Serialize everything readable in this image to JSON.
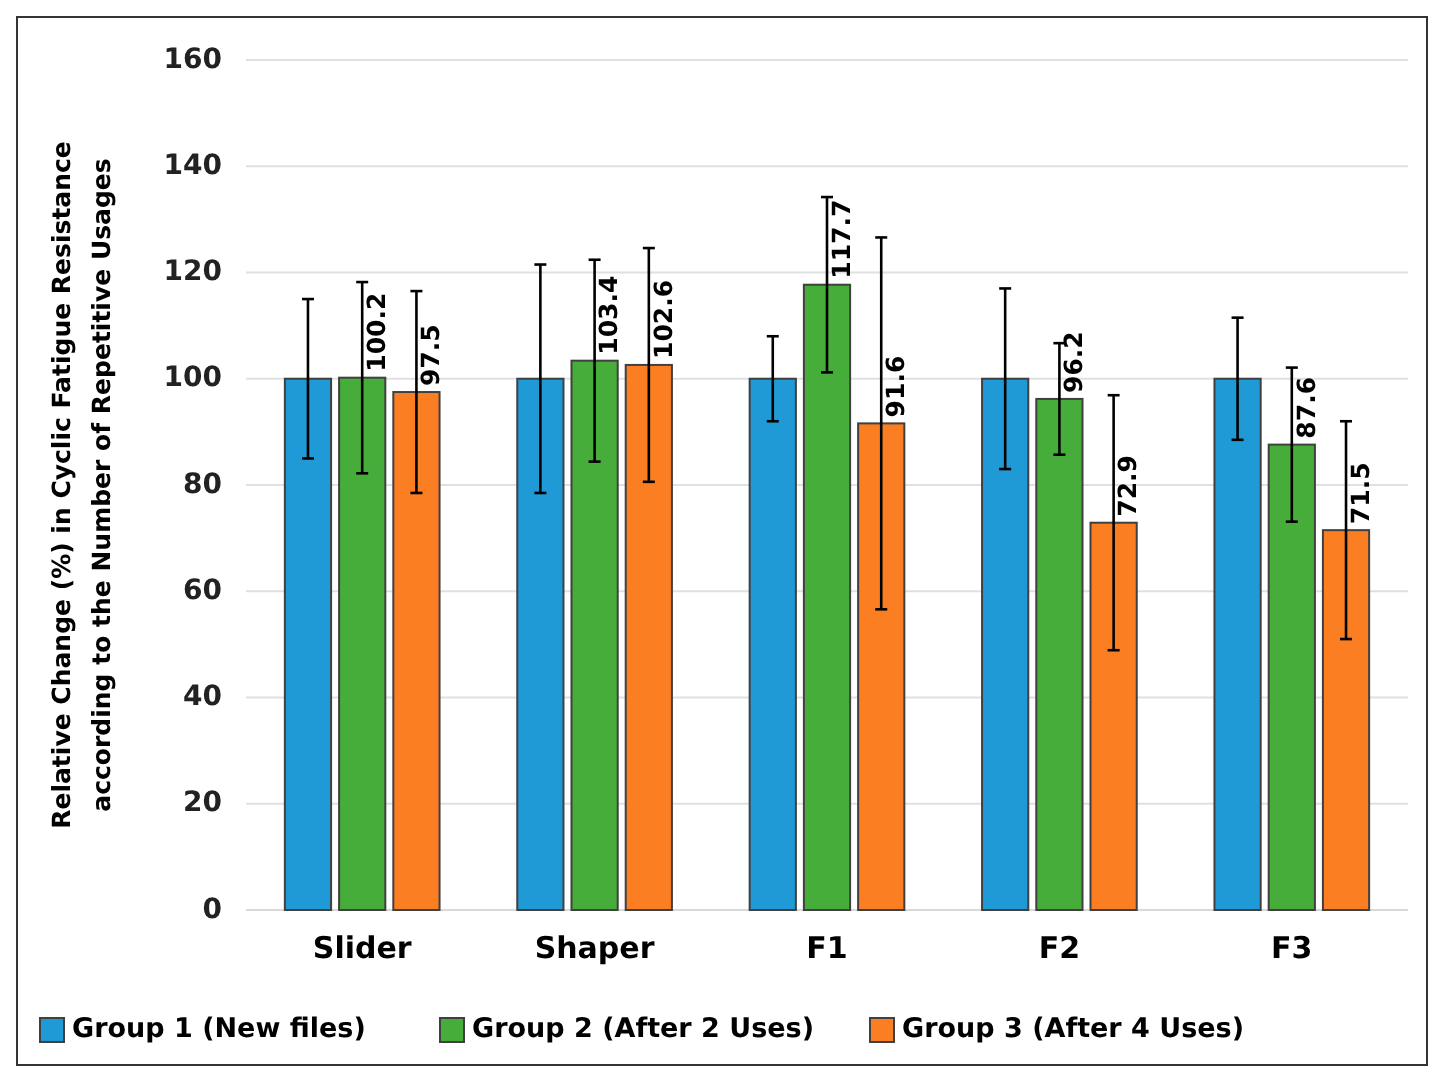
{
  "chart_data": {
    "type": "bar",
    "ylabel": "Relative Change (%) in Cyclic Fatigue Resistance\naccording to the Number of Repetitive Usages",
    "categories": [
      "Slider",
      "Shaper",
      "F1",
      "F2",
      "F3"
    ],
    "series": [
      {
        "name": "Group 1 (New files)",
        "color": "#1f9ad6",
        "values": [
          100,
          100,
          100,
          100,
          100
        ],
        "errors": [
          15,
          21.5,
          8,
          17,
          11.5
        ],
        "value_labels": [
          null,
          null,
          null,
          null,
          null
        ]
      },
      {
        "name": "Group 2 (After 2 Uses)",
        "color": "#46ad3a",
        "values": [
          100.2,
          103.4,
          117.7,
          96.2,
          87.6
        ],
        "errors": [
          18,
          19,
          16.5,
          10.5,
          14.5
        ],
        "value_labels": [
          "100.2",
          "103.4",
          "117.7",
          "96.2",
          "87.6"
        ]
      },
      {
        "name": "Group 3 (After 4 Uses)",
        "color": "#fb7e22",
        "values": [
          97.5,
          102.6,
          91.6,
          72.9,
          71.5
        ],
        "errors": [
          19,
          22,
          35,
          24,
          20.5
        ],
        "value_labels": [
          "97.5",
          "102.6",
          "91.6",
          "72.9",
          "71.5"
        ]
      }
    ],
    "ylim": [
      0,
      160
    ],
    "yticks": [
      0,
      20,
      40,
      60,
      80,
      100,
      120,
      140,
      160
    ],
    "grid": "y",
    "legend": "bottom"
  }
}
